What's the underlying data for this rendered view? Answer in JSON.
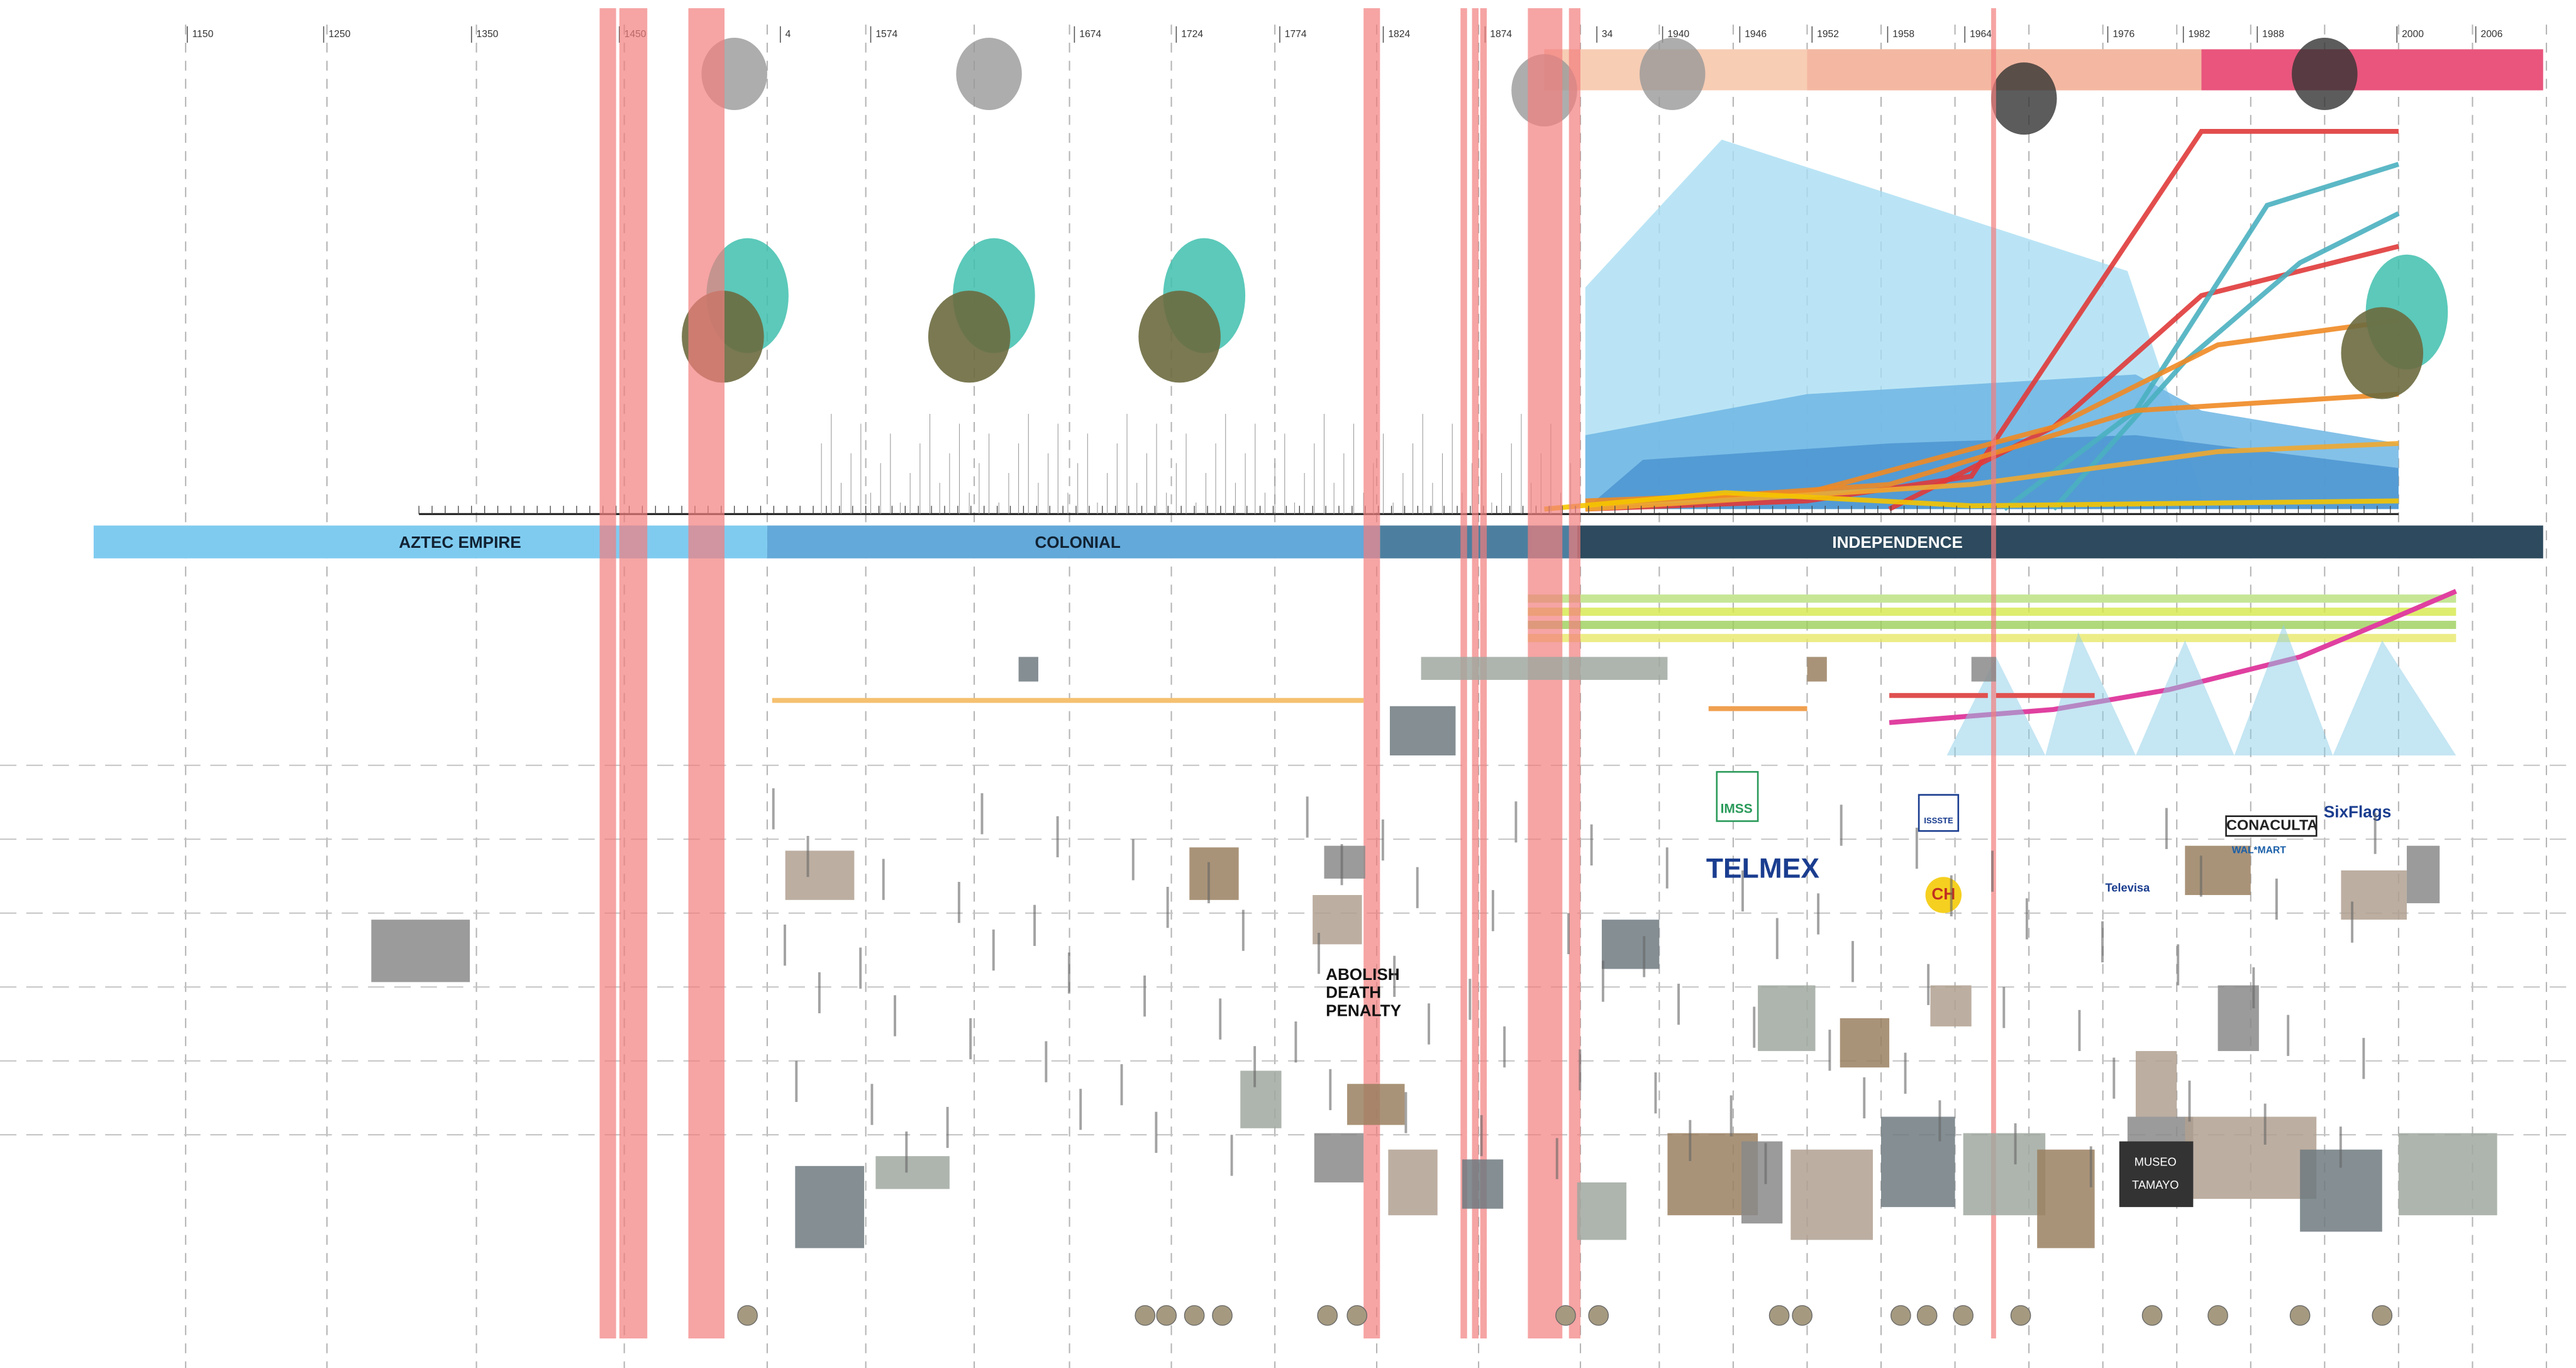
{
  "timeline": {
    "years": [
      "1150",
      "1250",
      "1350",
      "1450",
      "4",
      "1574",
      "1674",
      "1724",
      "1774",
      "1824",
      "1874",
      "34",
      "1940",
      "1946",
      "1952",
      "1958",
      "1964",
      "1976",
      "1982",
      "1988",
      "2000",
      "2006"
    ],
    "eras": {
      "aztec": "AZTEC EMPIRE",
      "colonial": "COLONIAL",
      "independence": "INDEPENDENCE"
    }
  },
  "logos": {
    "telmex": "TELMEX",
    "imss": "IMSS",
    "issste": "ISSSTE",
    "conaculta": "CONACULTA",
    "sixflags": "SixFlags",
    "televisa": "Televisa",
    "walmart": "WAL*MART",
    "ch": "CH",
    "tamayo": [
      "MUSEO",
      "TAMAYO"
    ],
    "death_penalty": [
      "ABOLISH",
      "DEATH",
      "PENALTY"
    ]
  }
}
